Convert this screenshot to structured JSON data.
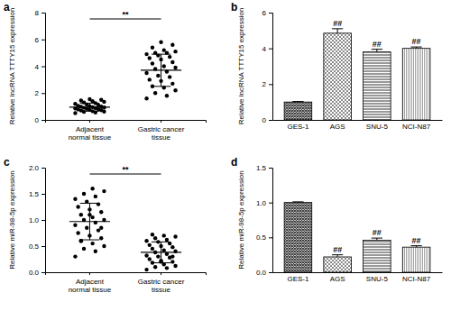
{
  "chart_data": [
    {
      "panel": "a",
      "type": "dot_plot",
      "y_label": "Relative lncRNA TTTY15 expression",
      "categories": [
        "Adjacent\nnormal tissue",
        "Gastric cancer\ntissue"
      ],
      "points": [
        [
          0.5,
          0.55,
          0.6,
          0.62,
          0.65,
          0.7,
          0.72,
          0.75,
          0.78,
          0.8,
          0.82,
          0.85,
          0.88,
          0.9,
          0.92,
          0.95,
          0.98,
          1.0,
          1.02,
          1.05,
          1.1,
          1.15,
          1.2,
          1.25,
          1.3,
          1.35,
          1.4,
          1.45,
          1.5,
          1.55
        ],
        [
          1.6,
          1.8,
          2.0,
          2.2,
          2.4,
          2.5,
          2.7,
          2.9,
          3.0,
          3.2,
          3.3,
          3.5,
          3.6,
          3.8,
          3.9,
          4.0,
          4.2,
          4.3,
          4.5,
          4.6,
          4.7,
          4.8,
          4.9,
          5.0,
          5.0,
          5.1,
          5.2,
          5.4,
          5.6,
          5.8
        ]
      ],
      "mean": [
        0.95,
        3.7
      ],
      "sd": [
        0.3,
        1.2
      ],
      "ylim": [
        0,
        8
      ],
      "yticks": [
        0,
        2,
        4,
        6,
        8
      ],
      "annotations": [
        {
          "text": "**"
        }
      ]
    },
    {
      "panel": "b",
      "type": "bar",
      "y_label": "Relative lncRNA TTTY15 expression",
      "categories": [
        "GES-1",
        "AGS",
        "SNU-5",
        "NCI-N87"
      ],
      "values": [
        1.0,
        4.85,
        3.8,
        4.0
      ],
      "errors": [
        0.03,
        0.25,
        0.15,
        0.08
      ],
      "colors": [
        "#3a3a3a",
        "#8a8a8a",
        "#555555",
        "#9a9a9a"
      ],
      "ylim": [
        0,
        6
      ],
      "yticks": [
        0,
        2,
        4,
        6
      ],
      "annotations": [
        {
          "x": "AGS",
          "text": "##"
        },
        {
          "x": "SNU-5",
          "text": "##"
        },
        {
          "x": "NCI-N87",
          "text": "##"
        }
      ]
    },
    {
      "panel": "c",
      "type": "dot_plot",
      "y_label": "Relative miR-98-5p expression",
      "categories": [
        "Adjacent\nnormal tissue",
        "Gastric cancer\ntissue"
      ],
      "points": [
        [
          0.3,
          0.4,
          0.45,
          0.5,
          0.55,
          0.6,
          0.65,
          0.7,
          0.75,
          0.8,
          0.85,
          0.9,
          0.95,
          1.0,
          1.0,
          1.05,
          1.1,
          1.15,
          1.2,
          1.25,
          1.3,
          1.35,
          1.4,
          1.45,
          1.5,
          1.55,
          1.6,
          0.6,
          0.85,
          1.1
        ],
        [
          0.05,
          0.08,
          0.1,
          0.12,
          0.15,
          0.18,
          0.2,
          0.22,
          0.25,
          0.28,
          0.3,
          0.32,
          0.35,
          0.38,
          0.4,
          0.42,
          0.45,
          0.48,
          0.5,
          0.52,
          0.55,
          0.58,
          0.6,
          0.62,
          0.65,
          0.68,
          0.7,
          0.72,
          0.3,
          0.2
        ]
      ],
      "mean": [
        0.97,
        0.38
      ],
      "sd": [
        0.35,
        0.2
      ],
      "ylim": [
        0,
        2
      ],
      "yticks": [
        {
          "value": 0,
          "label": "0.0"
        },
        0.5,
        {
          "value": 1,
          "label": "1.0"
        },
        1.5,
        {
          "value": 2,
          "label": "2.0"
        }
      ],
      "annotations": [
        {
          "text": "**"
        }
      ]
    },
    {
      "panel": "d",
      "type": "bar",
      "y_label": "Relative miR-98-5p expression",
      "categories": [
        "GES-1",
        "AGS",
        "SNU-5",
        "NCI-N87"
      ],
      "values": [
        1.0,
        0.22,
        0.46,
        0.36
      ],
      "errors": [
        0.01,
        0.03,
        0.03,
        0.02
      ],
      "colors": [
        "#3a3a3a",
        "#8a8a8a",
        "#555555",
        "#9a9a9a"
      ],
      "ylim": [
        0,
        1.5
      ],
      "yticks": [
        {
          "value": 0,
          "label": "0.0"
        },
        0.5,
        {
          "value": 1,
          "label": "1.0"
        },
        1.5
      ],
      "annotations": [
        {
          "x": "AGS",
          "text": "##"
        },
        {
          "x": "SNU-5",
          "text": "##"
        },
        {
          "x": "NCI-N87",
          "text": "##"
        }
      ]
    }
  ]
}
